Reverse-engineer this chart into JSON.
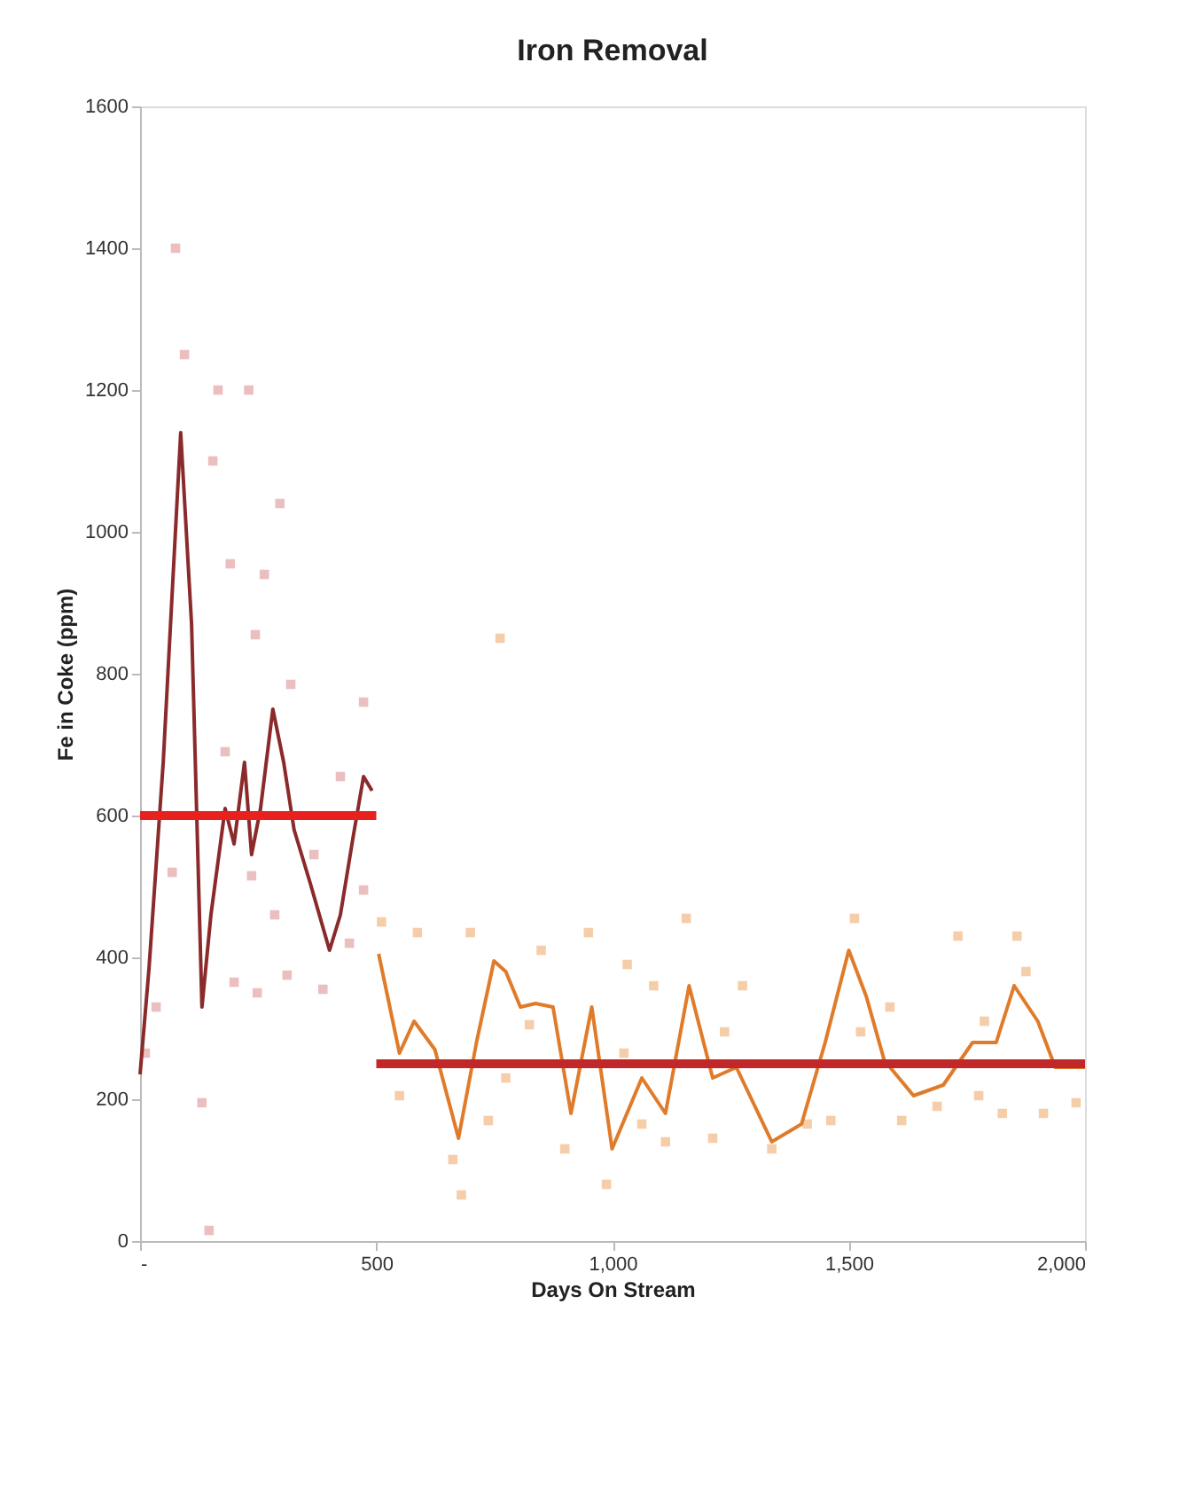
{
  "chart_data": {
    "type": "scatter",
    "title": "Iron Removal",
    "xlabel": "Days On Stream",
    "ylabel": "Fe in Coke (ppm)",
    "xlim": [
      0,
      2000
    ],
    "xticks": [
      {
        "value": 0,
        "label": "-"
      },
      500,
      {
        "value": 1000,
        "label": "1,000"
      },
      {
        "value": 1500,
        "label": "1,500"
      },
      {
        "value": 2000,
        "label": "2,000"
      }
    ],
    "ylim": [
      0,
      1600
    ],
    "yticks": [
      0,
      200,
      400,
      600,
      800,
      1000,
      1200,
      1400,
      1600
    ],
    "grid": false,
    "series": [
      {
        "marker": "square",
        "color": "#e8b4b4",
        "x": [
          75,
          94,
          165,
          230,
          154,
          296,
          191,
          263,
          244,
          319,
          473,
          180,
          424,
          68,
          236,
          285,
          473,
          199,
          248,
          311,
          387,
          34,
          131,
          146,
          443,
          11,
          368
        ],
        "values": [
          1400,
          1250,
          1200,
          1200,
          1100,
          1040,
          955,
          940,
          855,
          785,
          760,
          690,
          655,
          520,
          515,
          460,
          495,
          365,
          350,
          375,
          355,
          330,
          195,
          15,
          420,
          265,
          545
        ]
      },
      {
        "marker": "square",
        "color": "#f5c49a",
        "x": [
          511,
          587,
          699,
          762,
          849,
          949,
          1031,
          1087,
          1156,
          1275,
          1512,
          1731,
          1856,
          549,
          662,
          680,
          737,
          899,
          987,
          1062,
          1112,
          1212,
          1337,
          1412,
          1462,
          1525,
          1612,
          1687,
          1775,
          1825,
          1912,
          1981,
          824,
          1237,
          1587,
          1787,
          1875,
          774,
          1024
        ],
        "values": [
          450,
          435,
          435,
          850,
          410,
          435,
          390,
          360,
          455,
          360,
          455,
          430,
          430,
          205,
          115,
          65,
          170,
          130,
          80,
          165,
          140,
          145,
          130,
          165,
          170,
          295,
          170,
          190,
          205,
          180,
          180,
          195,
          305,
          295,
          330,
          310,
          380,
          230,
          265
        ]
      },
      {
        "type": "line",
        "color": "#8b2a2a",
        "x": [
          0,
          19,
          49,
          86,
          109,
          131,
          150,
          180,
          199,
          221,
          236,
          255,
          281,
          304,
          326,
          360,
          401,
          424,
          451,
          473,
          491
        ],
        "values": [
          235,
          385,
          675,
          1140,
          870,
          330,
          460,
          610,
          560,
          675,
          545,
          610,
          750,
          675,
          580,
          505,
          410,
          460,
          570,
          655,
          635
        ]
      },
      {
        "type": "line",
        "color": "#e07b2a",
        "x": [
          505,
          549,
          580,
          624,
          674,
          712,
          749,
          774,
          805,
          837,
          874,
          912,
          956,
          999,
          1062,
          1112,
          1162,
          1212,
          1262,
          1337,
          1400,
          1450,
          1500,
          1537,
          1575,
          1637,
          1700,
          1762,
          1812,
          1850,
          1900,
          1937,
          2000
        ],
        "values": [
          405,
          265,
          310,
          270,
          145,
          280,
          395,
          380,
          330,
          335,
          330,
          180,
          330,
          130,
          230,
          180,
          360,
          230,
          245,
          140,
          165,
          280,
          410,
          345,
          255,
          205,
          220,
          280,
          280,
          360,
          310,
          245,
          245
        ]
      },
      {
        "type": "line",
        "color": "#e8201e",
        "x": [
          0,
          500
        ],
        "values": [
          600,
          600
        ]
      },
      {
        "type": "line",
        "color": "#c0282a",
        "x": [
          500,
          2000
        ],
        "values": [
          250,
          250
        ]
      }
    ]
  }
}
